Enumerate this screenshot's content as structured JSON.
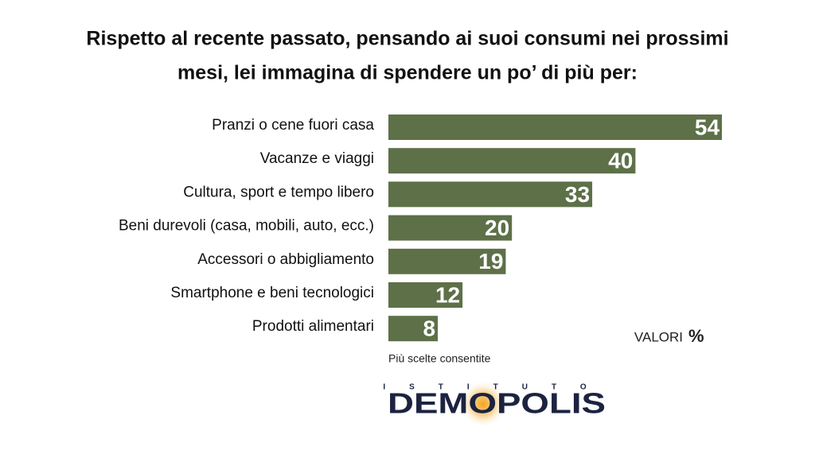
{
  "chart_data": {
    "type": "bar",
    "orientation": "horizontal",
    "title": [
      "Rispetto al recente passato, pensando ai suoi consumi nei prossimi",
      "mesi, lei immagina di spendere un po’ di più per:"
    ],
    "categories": [
      "Pranzi o cene fuori casa",
      "Vacanze e viaggi",
      "Cultura, sport e tempo libero",
      "Beni durevoli (casa, mobili, auto, ecc.)",
      "Accessori o abbigliamento",
      "Smartphone e beni tecnologici",
      "Prodotti alimentari"
    ],
    "values": [
      54,
      40,
      33,
      20,
      19,
      12,
      8
    ],
    "color": "#5d7048",
    "note": "VALORI",
    "unit": "%",
    "footnote": "Più scelte consentite",
    "logo": {
      "top": "ISTITUTO",
      "name": "DEMOPOLIS"
    }
  }
}
